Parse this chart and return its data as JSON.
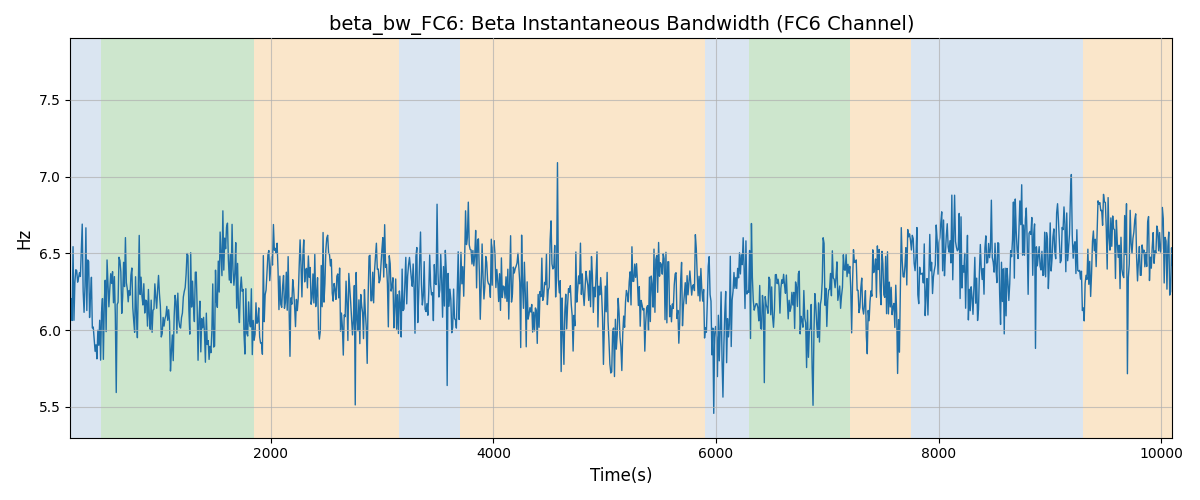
{
  "title": "beta_bw_FC6: Beta Instantaneous Bandwidth (FC6 Channel)",
  "xlabel": "Time(s)",
  "ylabel": "Hz",
  "xlim": [
    200,
    10100
  ],
  "ylim": [
    5.3,
    7.9
  ],
  "line_color": "#1f6fa8",
  "line_width": 1.0,
  "seed": 42,
  "n_points": 1200,
  "x_start": 200,
  "x_end": 10100,
  "base_mean": 6.3,
  "noise_std": 0.15,
  "background_bands": [
    {
      "xmin": 200,
      "xmax": 480,
      "color": "#adc6e0",
      "alpha": 0.45
    },
    {
      "xmin": 480,
      "xmax": 1850,
      "color": "#90c990",
      "alpha": 0.45
    },
    {
      "xmin": 1850,
      "xmax": 3150,
      "color": "#f5c98a",
      "alpha": 0.45
    },
    {
      "xmin": 3150,
      "xmax": 3700,
      "color": "#adc6e0",
      "alpha": 0.45
    },
    {
      "xmin": 3700,
      "xmax": 5900,
      "color": "#f5c98a",
      "alpha": 0.45
    },
    {
      "xmin": 5900,
      "xmax": 6300,
      "color": "#adc6e0",
      "alpha": 0.45
    },
    {
      "xmin": 6300,
      "xmax": 7200,
      "color": "#90c990",
      "alpha": 0.45
    },
    {
      "xmin": 7200,
      "xmax": 7750,
      "color": "#f5c98a",
      "alpha": 0.45
    },
    {
      "xmin": 7750,
      "xmax": 9300,
      "color": "#adc6e0",
      "alpha": 0.45
    },
    {
      "xmin": 9300,
      "xmax": 10100,
      "color": "#f5c98a",
      "alpha": 0.45
    }
  ],
  "grid": true,
  "grid_color": "#b0b0b0",
  "grid_alpha": 0.7,
  "grid_linewidth": 0.8,
  "title_fontsize": 14,
  "label_fontsize": 12,
  "tick_fontsize": 10,
  "fig_width": 12,
  "fig_height": 5
}
